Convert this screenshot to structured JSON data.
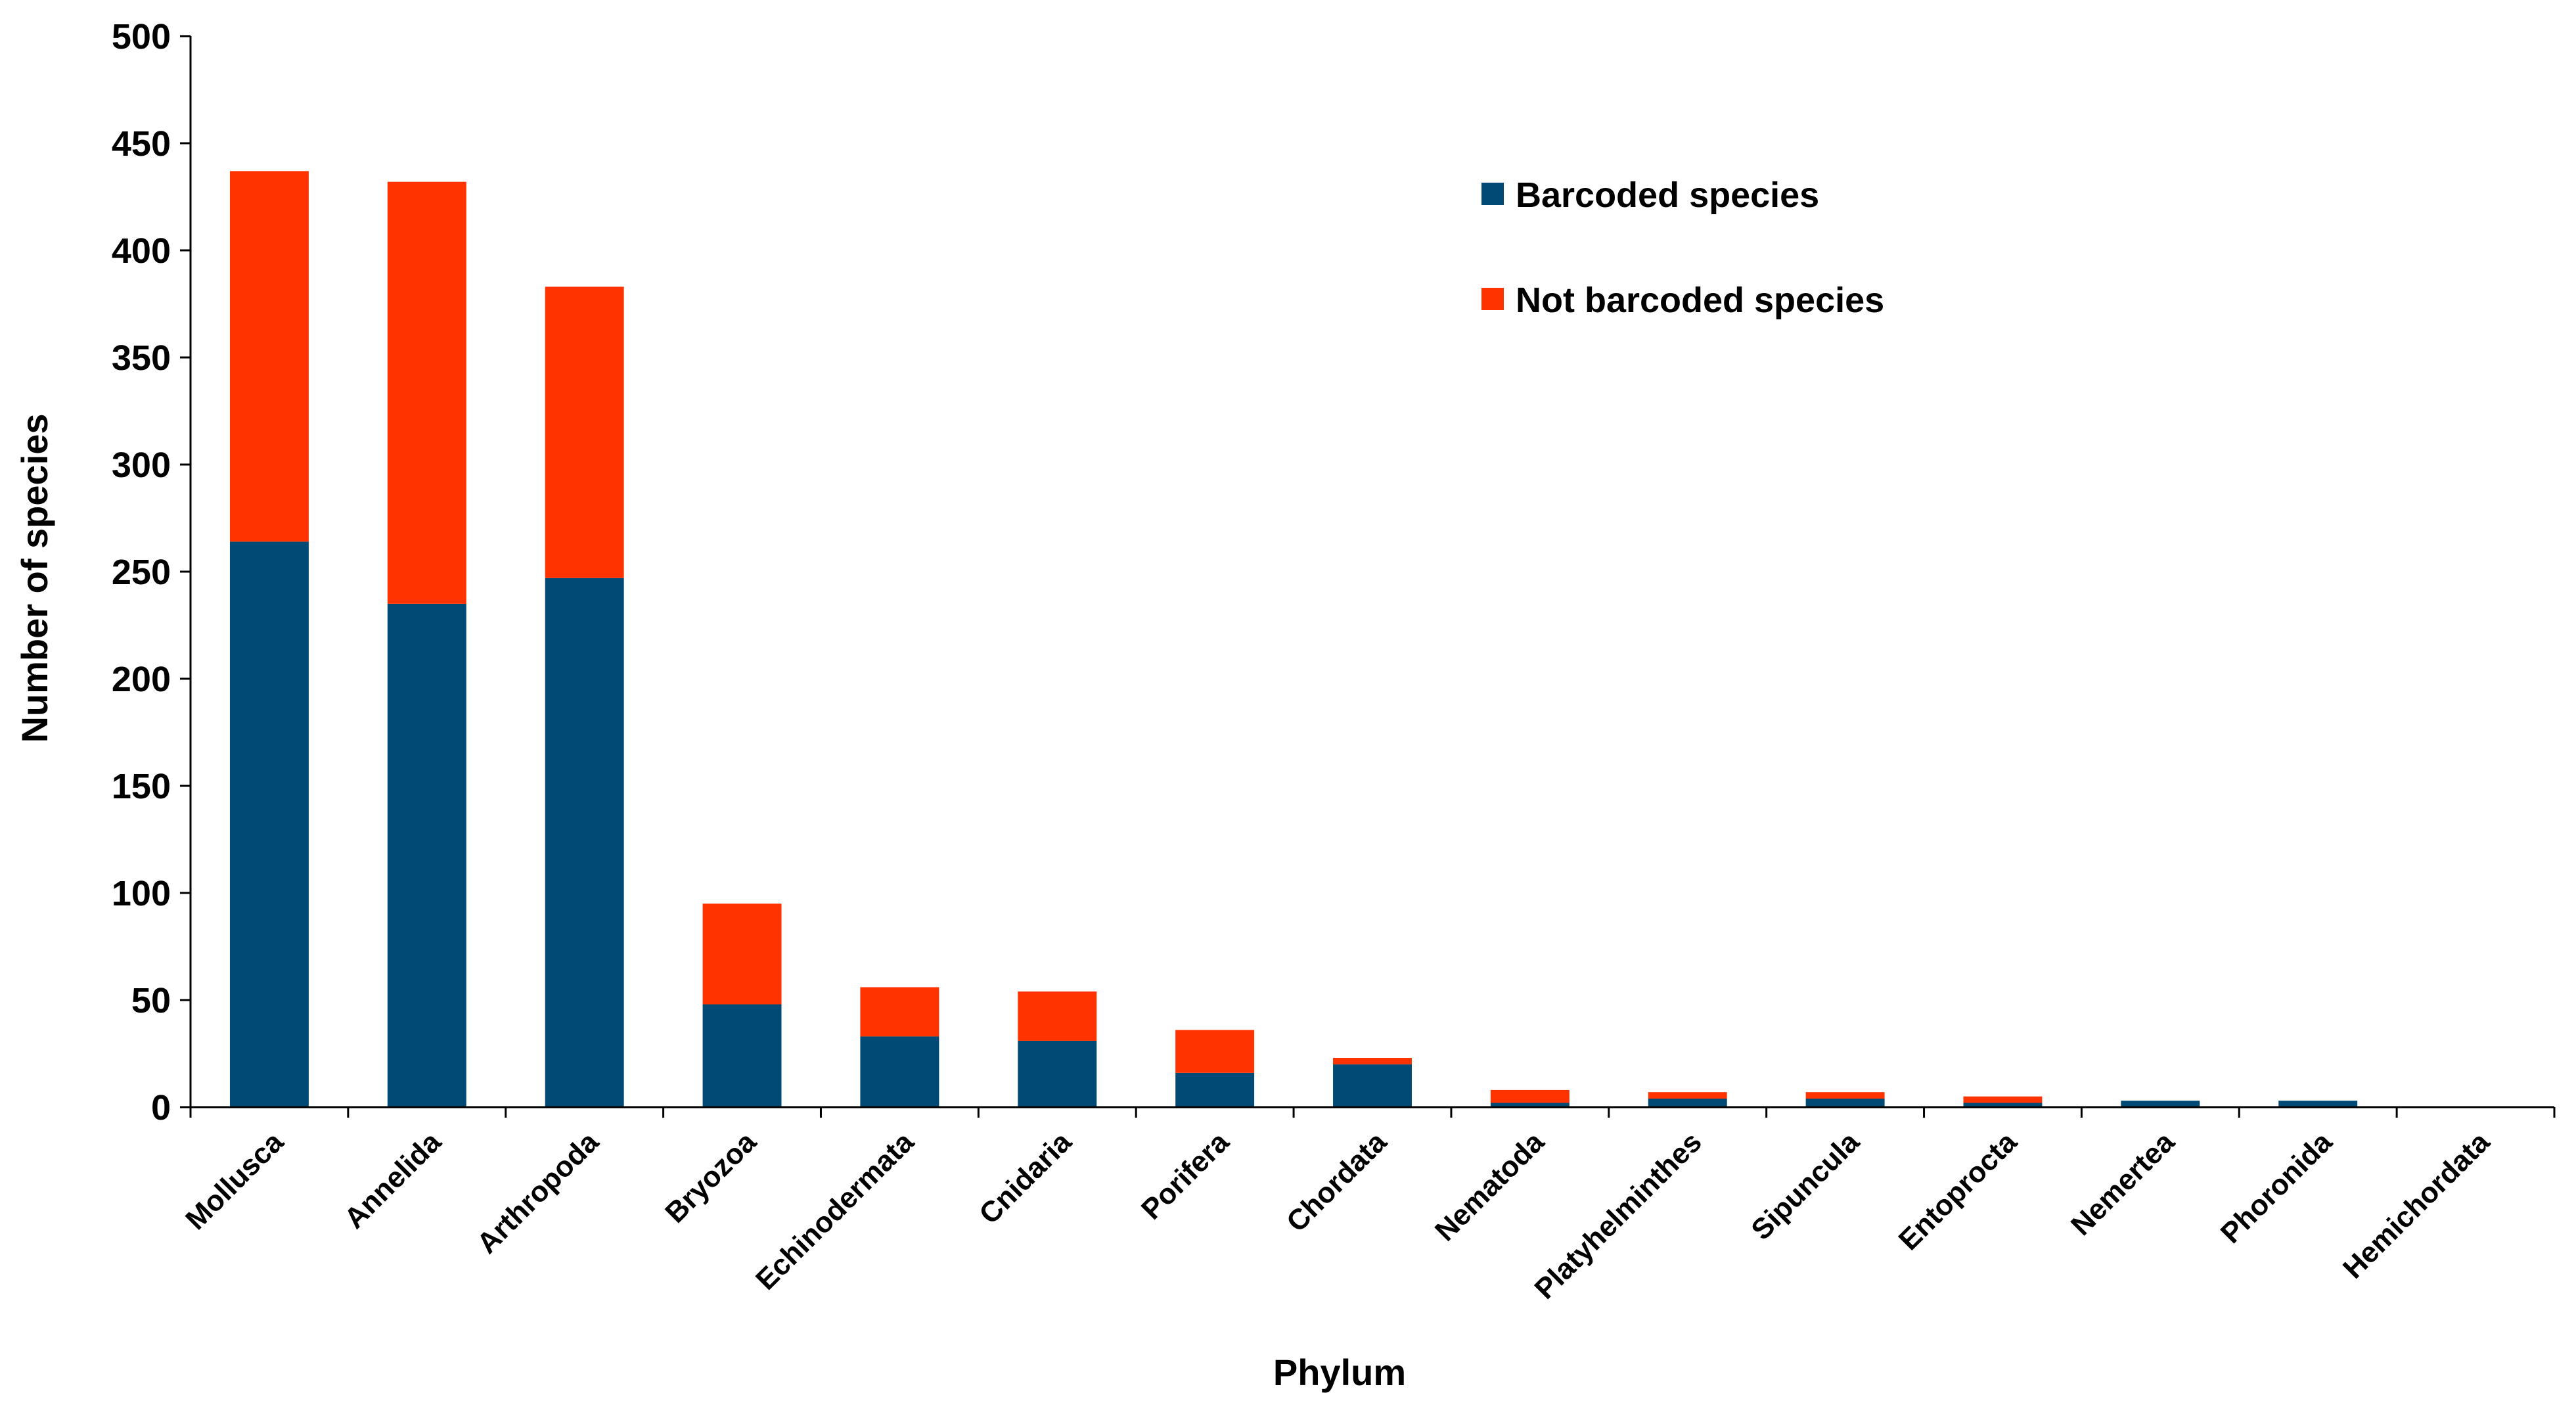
{
  "chart_data": {
    "type": "bar",
    "stacked": true,
    "title": "",
    "xlabel": "Phylum",
    "ylabel": "Number of species",
    "ylim": [
      0,
      500
    ],
    "yticks": [
      0,
      50,
      100,
      150,
      200,
      250,
      300,
      350,
      400,
      450,
      500
    ],
    "grid": false,
    "legend_position": "top-right",
    "categories": [
      "Mollusca",
      "Annelida",
      "Arthropoda",
      "Bryozoa",
      "Echinodermata",
      "Cnidaria",
      "Porifera",
      "Chordata",
      "Nematoda",
      "Platyhelminthes",
      "Sipuncula",
      "Entoprocta",
      "Nemertea",
      "Phoronida",
      "Hemichordata"
    ],
    "series": [
      {
        "name": "Barcoded species",
        "color": "#004a75",
        "values": [
          264,
          235,
          247,
          48,
          33,
          31,
          16,
          20,
          2,
          4,
          4,
          2,
          3,
          3,
          0
        ]
      },
      {
        "name": "Not barcoded species",
        "color": "#ff3300",
        "values": [
          173,
          197,
          136,
          47,
          23,
          23,
          20,
          3,
          6,
          3,
          3,
          3,
          0,
          0,
          0
        ]
      }
    ]
  }
}
